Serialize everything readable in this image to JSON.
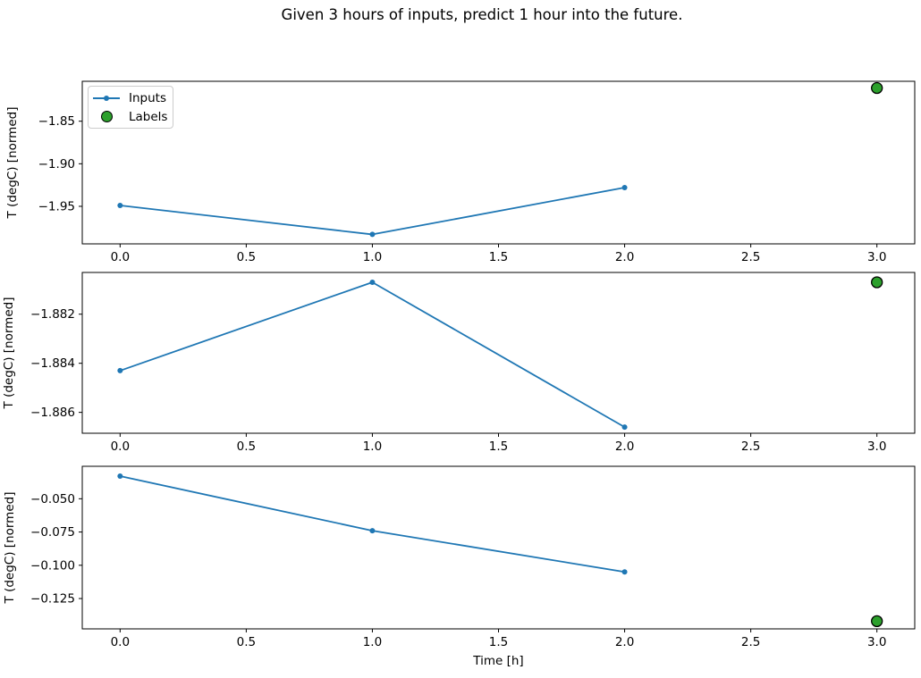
{
  "figure": {
    "title": "Given 3 hours of inputs, predict 1 hour into the future.",
    "background": "#ffffff"
  },
  "legend": {
    "position": "upper-left-of-first-subplot",
    "items": [
      {
        "label": "Inputs",
        "color": "#1f77b4",
        "marker": "line-with-dot"
      },
      {
        "label": "Labels",
        "color": "#2ca02c",
        "edge_color": "#000000",
        "marker": "circle"
      }
    ]
  },
  "chart_data": [
    {
      "type": "line",
      "ylabel": "T (degC) [normed]",
      "xlabel": "",
      "grid": false,
      "xlim": [
        -0.15,
        3.15
      ],
      "ylim": [
        -1.9941,
        -1.8031
      ],
      "xticks": [
        0.0,
        0.5,
        1.0,
        1.5,
        2.0,
        2.5,
        3.0
      ],
      "xtick_labels": [
        "0.0",
        "0.5",
        "1.0",
        "1.5",
        "2.0",
        "2.5",
        "3.0"
      ],
      "yticks": [
        -1.85,
        -1.9,
        -1.95
      ],
      "ytick_labels": [
        "−1.85",
        "−1.90",
        "−1.95"
      ],
      "series": [
        {
          "name": "Inputs",
          "type": "line",
          "x": [
            0,
            1,
            2
          ],
          "y": [
            -1.949,
            -1.983,
            -1.928
          ],
          "color": "#1f77b4"
        },
        {
          "name": "Labels",
          "type": "scatter",
          "x": [
            3
          ],
          "y": [
            -1.811
          ],
          "color": "#2ca02c",
          "edge_color": "#000000"
        }
      ]
    },
    {
      "type": "line",
      "ylabel": "T (degC) [normed]",
      "xlabel": "",
      "grid": false,
      "xlim": [
        -0.15,
        3.15
      ],
      "ylim": [
        -1.88685,
        -1.8803
      ],
      "xticks": [
        0.0,
        0.5,
        1.0,
        1.5,
        2.0,
        2.5,
        3.0
      ],
      "xtick_labels": [
        "0.0",
        "0.5",
        "1.0",
        "1.5",
        "2.0",
        "2.5",
        "3.0"
      ],
      "yticks": [
        -1.882,
        -1.884,
        -1.886
      ],
      "ytick_labels": [
        "−1.882",
        "−1.884",
        "−1.886"
      ],
      "series": [
        {
          "name": "Inputs",
          "type": "line",
          "x": [
            0,
            1,
            2
          ],
          "y": [
            -1.8843,
            -1.8807,
            -1.8866
          ],
          "color": "#1f77b4"
        },
        {
          "name": "Labels",
          "type": "scatter",
          "x": [
            3
          ],
          "y": [
            -1.8807
          ],
          "color": "#2ca02c",
          "edge_color": "#000000"
        }
      ]
    },
    {
      "type": "line",
      "ylabel": "T (degC) [normed]",
      "xlabel": "Time [h]",
      "grid": false,
      "xlim": [
        -0.15,
        3.15
      ],
      "ylim": [
        -0.1478,
        -0.0256
      ],
      "xticks": [
        0.0,
        0.5,
        1.0,
        1.5,
        2.0,
        2.5,
        3.0
      ],
      "xtick_labels": [
        "0.0",
        "0.5",
        "1.0",
        "1.5",
        "2.0",
        "2.5",
        "3.0"
      ],
      "yticks": [
        -0.05,
        -0.075,
        -0.1,
        -0.125
      ],
      "ytick_labels": [
        "−0.050",
        "−0.075",
        "−0.100",
        "−0.125"
      ],
      "series": [
        {
          "name": "Inputs",
          "type": "line",
          "x": [
            0,
            1,
            2
          ],
          "y": [
            -0.033,
            -0.074,
            -0.105
          ],
          "color": "#1f77b4"
        },
        {
          "name": "Labels",
          "type": "scatter",
          "x": [
            3
          ],
          "y": [
            -0.142
          ],
          "color": "#2ca02c",
          "edge_color": "#000000"
        }
      ]
    }
  ]
}
